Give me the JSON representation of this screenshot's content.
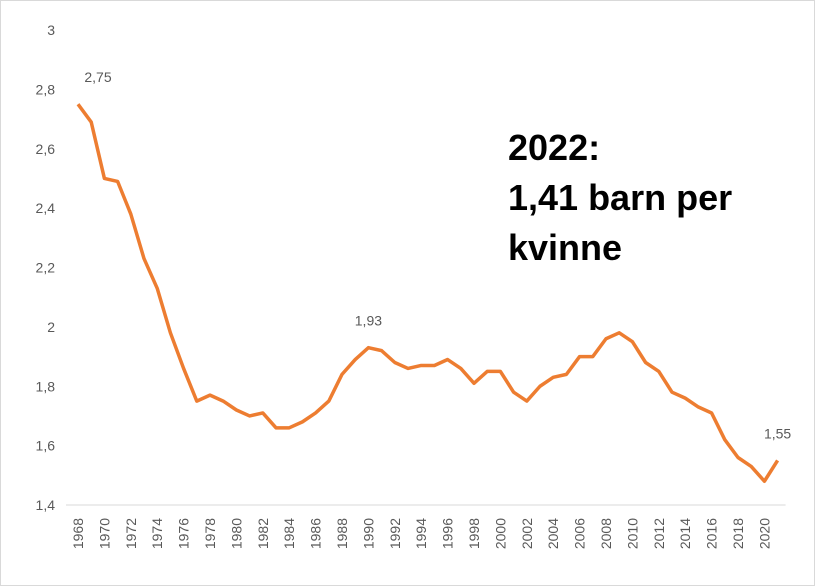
{
  "chart_data": {
    "type": "line",
    "categories": [
      "1968",
      null,
      "1970",
      null,
      "1972",
      null,
      "1974",
      null,
      "1976",
      null,
      "1978",
      null,
      "1980",
      null,
      "1982",
      null,
      "1984",
      null,
      "1986",
      null,
      "1988",
      null,
      "1990",
      null,
      "1992",
      null,
      "1994",
      null,
      "1996",
      null,
      "1998",
      null,
      "2000",
      null,
      "2002",
      null,
      "2004",
      null,
      "2006",
      null,
      "2008",
      null,
      "2010",
      null,
      "2012",
      null,
      "2014",
      null,
      "2016",
      null,
      "2018",
      null,
      "2020",
      null
    ],
    "series": [
      {
        "color": "#ed7d31",
        "values": [
          2.75,
          2.69,
          2.5,
          2.49,
          2.38,
          2.23,
          2.13,
          1.98,
          1.86,
          1.75,
          1.77,
          1.75,
          1.72,
          1.7,
          1.71,
          1.66,
          1.66,
          1.68,
          1.71,
          1.75,
          1.84,
          1.89,
          1.93,
          1.92,
          1.88,
          1.86,
          1.87,
          1.87,
          1.89,
          1.86,
          1.81,
          1.85,
          1.85,
          1.78,
          1.75,
          1.8,
          1.83,
          1.84,
          1.9,
          1.9,
          1.96,
          1.98,
          1.95,
          1.88,
          1.85,
          1.78,
          1.76,
          1.73,
          1.71,
          1.62,
          1.56,
          1.53,
          1.48,
          1.55
        ],
        "value_labels": [
          "2,75",
          null,
          null,
          null,
          null,
          null,
          null,
          null,
          null,
          null,
          null,
          null,
          null,
          null,
          null,
          null,
          null,
          null,
          null,
          null,
          null,
          null,
          "1,93",
          null,
          null,
          null,
          null,
          null,
          null,
          null,
          null,
          null,
          null,
          null,
          null,
          null,
          null,
          null,
          null,
          null,
          null,
          null,
          null,
          null,
          null,
          null,
          null,
          null,
          null,
          null,
          null,
          null,
          null,
          "1,55"
        ]
      }
    ],
    "ylim": [
      1.4,
      3
    ],
    "yticks": [
      {
        "value": 1.4,
        "label": "1,4"
      },
      {
        "value": 1.6,
        "label": "1,6"
      },
      {
        "value": 1.8,
        "label": "1,8"
      },
      2,
      {
        "value": 2.2,
        "label": "2,2"
      },
      {
        "value": 2.4,
        "label": "2,4"
      },
      {
        "value": 2.6,
        "label": "2,6"
      },
      {
        "value": 2.8,
        "label": "2,8"
      },
      3
    ],
    "annotation": [
      "2022:",
      "1,41 barn per",
      "kvinne"
    ]
  }
}
